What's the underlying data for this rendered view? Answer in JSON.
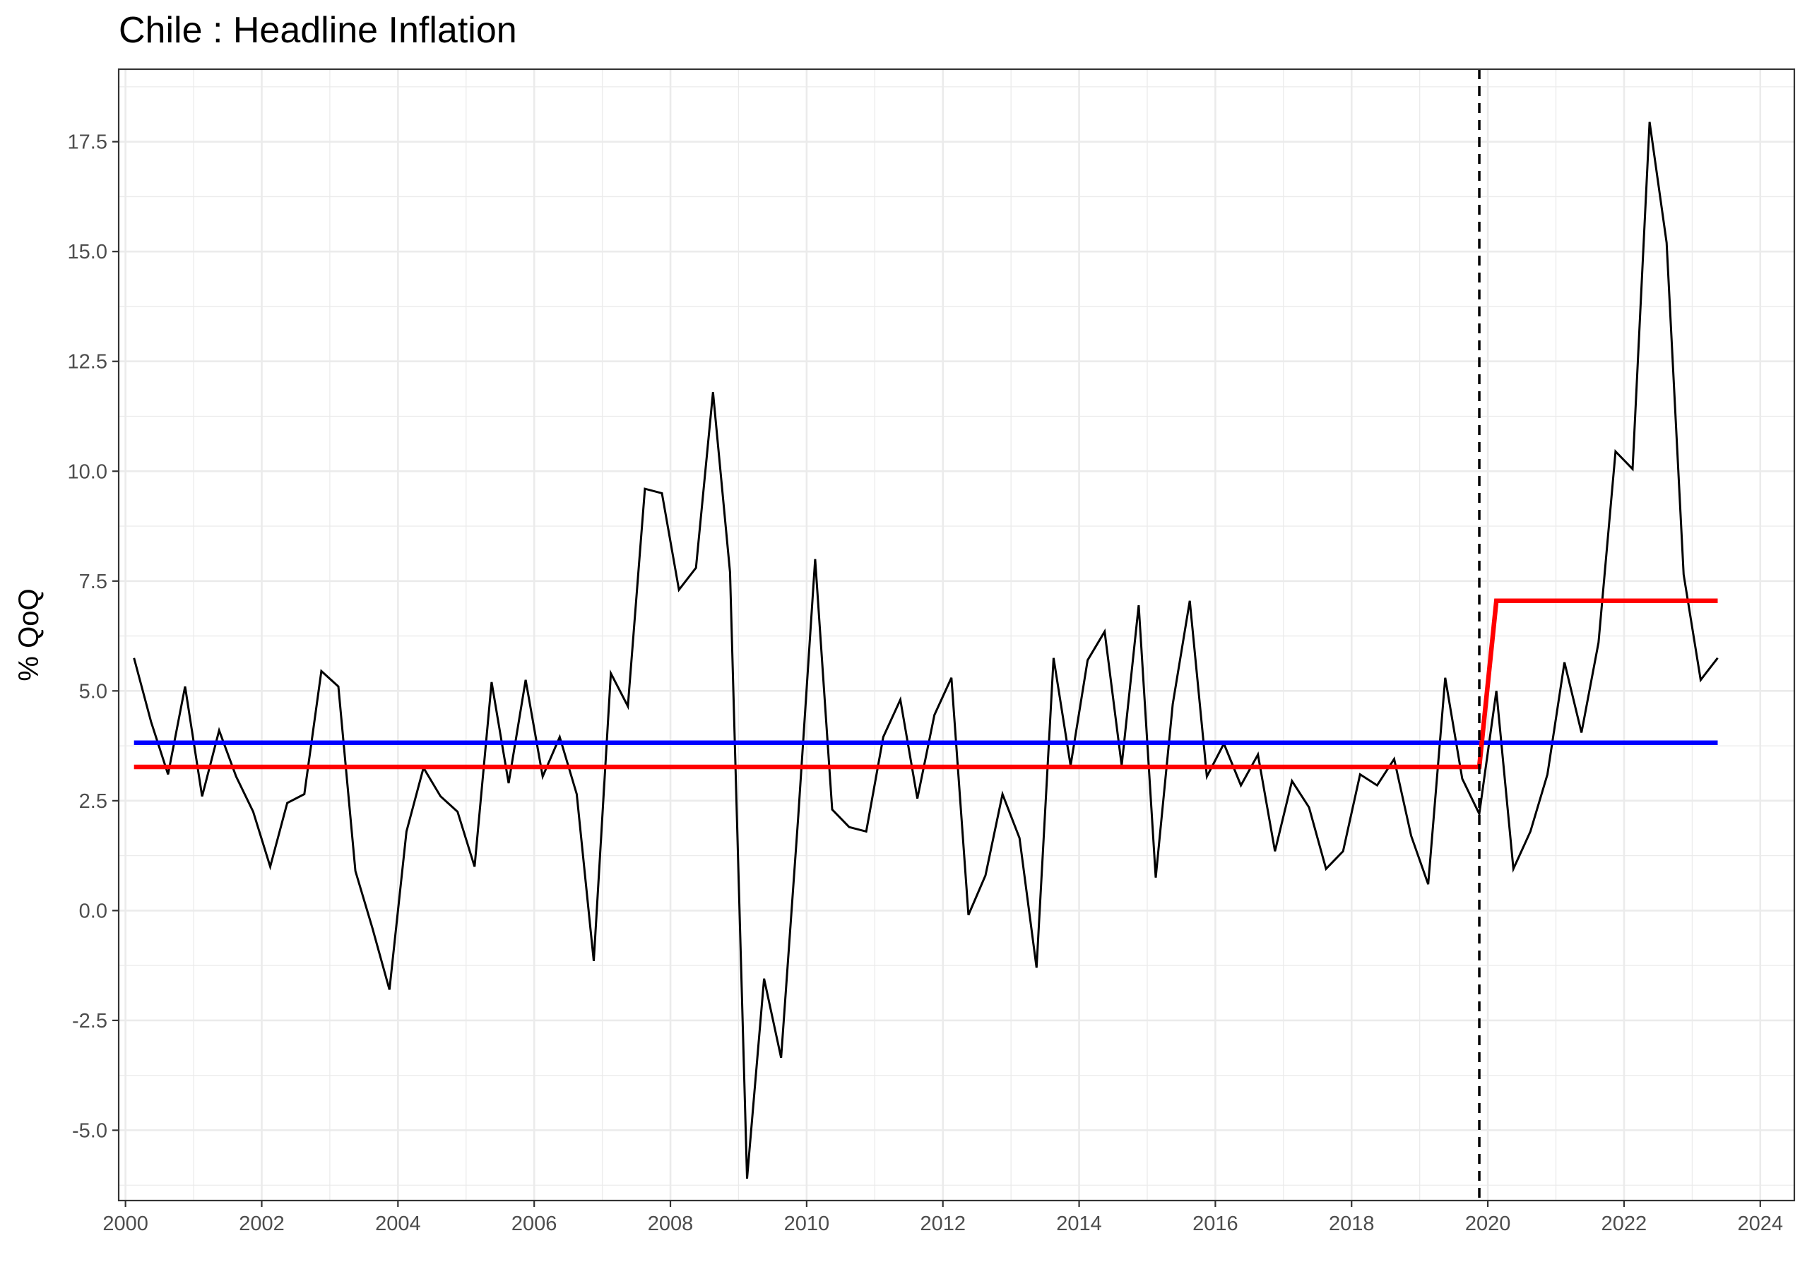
{
  "chart_data": {
    "type": "line",
    "title": "Chile : Headline Inflation",
    "xlabel": "",
    "ylabel": "% QoQ",
    "xlim": [
      1999.9,
      2024.5
    ],
    "ylim": [
      -6.6,
      19.15
    ],
    "x_ticks": [
      2000,
      2002,
      2004,
      2006,
      2008,
      2010,
      2012,
      2014,
      2016,
      2018,
      2020,
      2022,
      2024
    ],
    "y_ticks": [
      -5.0,
      -2.5,
      0.0,
      2.5,
      5.0,
      7.5,
      10.0,
      12.5,
      15.0,
      17.5
    ],
    "x_tick_labels": [
      "2000",
      "2002",
      "2004",
      "2006",
      "2008",
      "2010",
      "2012",
      "2014",
      "2016",
      "2018",
      "2020",
      "2022",
      "2024"
    ],
    "y_tick_labels": [
      "-5.0",
      "-2.5",
      "0.0",
      "2.5",
      "5.0",
      "7.5",
      "10.0",
      "12.5",
      "15.0",
      "17.5"
    ],
    "grid": true,
    "legend": "none",
    "vline": {
      "x": 2019.875,
      "style": "dashed",
      "color": "#000000"
    },
    "series": [
      {
        "color": "#000000",
        "x": [
          2000.125,
          2000.375,
          2000.625,
          2000.875,
          2001.125,
          2001.375,
          2001.625,
          2001.875,
          2002.125,
          2002.375,
          2002.625,
          2002.875,
          2003.125,
          2003.375,
          2003.625,
          2003.875,
          2004.125,
          2004.375,
          2004.625,
          2004.875,
          2005.125,
          2005.375,
          2005.625,
          2005.875,
          2006.125,
          2006.375,
          2006.625,
          2006.875,
          2007.125,
          2007.375,
          2007.625,
          2007.875,
          2008.125,
          2008.375,
          2008.625,
          2008.875,
          2009.125,
          2009.375,
          2009.625,
          2009.875,
          2010.125,
          2010.375,
          2010.625,
          2010.875,
          2011.125,
          2011.375,
          2011.625,
          2011.875,
          2012.125,
          2012.375,
          2012.625,
          2012.875,
          2013.125,
          2013.375,
          2013.625,
          2013.875,
          2014.125,
          2014.375,
          2014.625,
          2014.875,
          2015.125,
          2015.375,
          2015.625,
          2015.875,
          2016.125,
          2016.375,
          2016.625,
          2016.875,
          2017.125,
          2017.375,
          2017.625,
          2017.875,
          2018.125,
          2018.375,
          2018.625,
          2018.875,
          2019.125,
          2019.375,
          2019.625,
          2019.875,
          2020.125,
          2020.375,
          2020.625,
          2020.875,
          2021.125,
          2021.375,
          2021.625,
          2021.875,
          2022.125,
          2022.375,
          2022.625,
          2022.875,
          2023.125,
          2023.375
        ],
        "y": [
          5.75,
          4.3,
          3.1,
          5.1,
          2.6,
          4.1,
          3.05,
          2.25,
          1.0,
          2.45,
          2.65,
          5.45,
          5.1,
          0.9,
          -0.4,
          -1.8,
          1.8,
          3.25,
          2.6,
          2.25,
          1.0,
          5.2,
          2.9,
          5.25,
          3.05,
          3.95,
          2.65,
          -1.15,
          5.4,
          4.65,
          9.6,
          9.5,
          7.3,
          7.8,
          11.8,
          7.7,
          -6.1,
          -1.55,
          -3.35,
          2.1,
          8.0,
          2.3,
          1.9,
          1.8,
          3.95,
          4.8,
          2.55,
          4.45,
          5.3,
          -0.1,
          0.8,
          2.65,
          1.65,
          -1.3,
          5.75,
          3.3,
          5.7,
          6.35,
          3.3,
          6.95,
          0.75,
          4.7,
          7.05,
          3.05,
          3.8,
          2.85,
          3.55,
          1.35,
          2.95,
          2.35,
          0.95,
          1.35,
          3.1,
          2.85,
          3.45,
          1.7,
          0.6,
          5.3,
          3.0,
          2.2,
          5.0,
          0.95,
          1.8,
          3.1,
          5.65,
          4.05,
          6.1,
          10.45,
          10.05,
          17.95,
          15.2,
          7.65,
          5.25,
          5.75
        ]
      },
      {
        "color": "#0000ff",
        "x": [
          2000.125,
          2023.375
        ],
        "y": [
          3.82,
          3.82
        ]
      },
      {
        "color": "#ff0000",
        "x": [
          2000.125,
          2019.875,
          2020.125,
          2023.375
        ],
        "y": [
          3.27,
          3.27,
          7.05,
          7.05
        ]
      }
    ]
  }
}
